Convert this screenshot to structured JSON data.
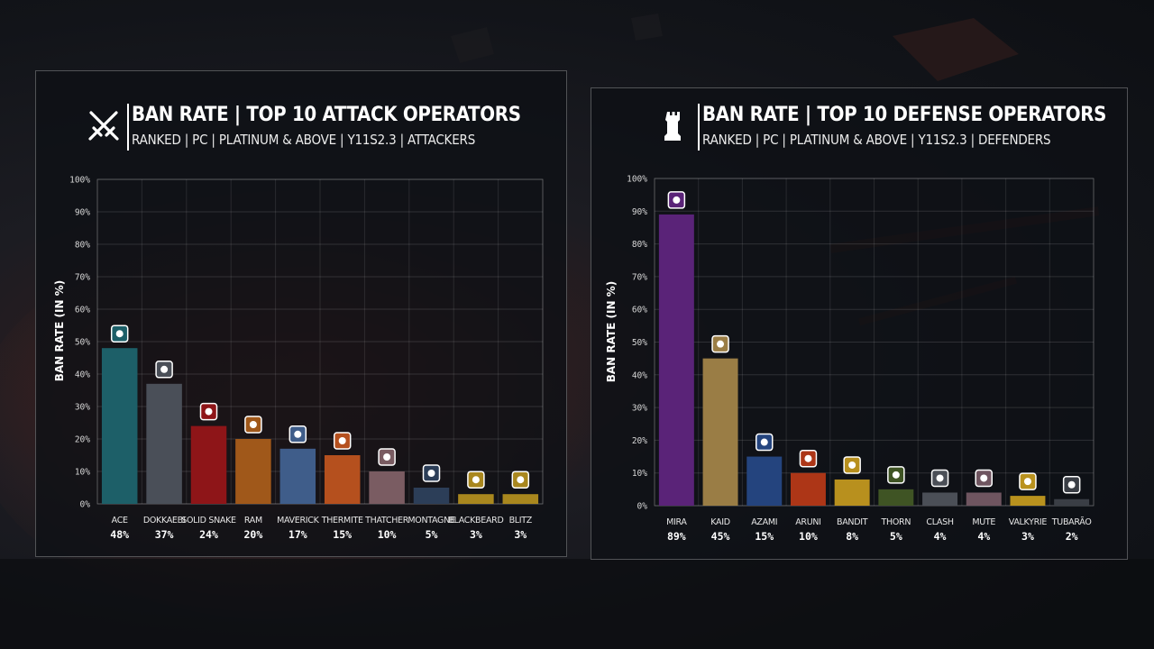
{
  "attack": {
    "title": "BAN RATE | TOP 10 ATTACK OPERATORS",
    "subtitle": "RANKED | PC | PLATINUM & ABOVE | Y11S2.3 | ATTACKERS",
    "icon": "crossed-swords-icon"
  },
  "defense": {
    "title": "BAN RATE | TOP 10 DEFENSE OPERATORS",
    "subtitle": "RANKED | PC | PLATINUM & ABOVE | Y11S2.3 | DEFENDERS",
    "icon": "tower-icon"
  },
  "chart_data": [
    {
      "type": "bar",
      "title": "BAN RATE | TOP 10 ATTACK OPERATORS",
      "subtitle": "RANKED | PC | PLATINUM & ABOVE | Y11S2.3 | ATTACKERS",
      "ylabel": "BAN RATE (IN %)",
      "xlabel": "",
      "ylim": [
        0,
        100
      ],
      "yticks": [
        "0%",
        "10%",
        "20%",
        "30%",
        "40%",
        "50%",
        "60%",
        "70%",
        "80%",
        "90%",
        "100%"
      ],
      "grid": true,
      "categories": [
        "ACE",
        "DOKKAEBI",
        "SOLID SNAKE",
        "RAM",
        "MAVERICK",
        "THERMITE",
        "THATCHER",
        "MONTAGNE",
        "BLACKBEARD",
        "BLITZ"
      ],
      "values": [
        48,
        37,
        24,
        20,
        17,
        15,
        10,
        5,
        3,
        3
      ],
      "labels": [
        "48%",
        "37%",
        "24%",
        "20%",
        "17%",
        "15%",
        "10%",
        "5%",
        "3%",
        "3%"
      ],
      "colors": [
        "#1d5f68",
        "#4a4f58",
        "#8e1518",
        "#a0581a",
        "#3f5d8a",
        "#b5501e",
        "#7a5c62",
        "#2c3e58",
        "#a9871e",
        "#a9871e"
      ]
    },
    {
      "type": "bar",
      "title": "BAN RATE | TOP 10 DEFENSE OPERATORS",
      "subtitle": "RANKED | PC | PLATINUM & ABOVE | Y11S2.3 | DEFENDERS",
      "ylabel": "BAN RATE (IN %)",
      "xlabel": "",
      "ylim": [
        0,
        100
      ],
      "yticks": [
        "0%",
        "10%",
        "20%",
        "30%",
        "40%",
        "50%",
        "60%",
        "70%",
        "80%",
        "90%",
        "100%"
      ],
      "grid": true,
      "categories": [
        "MIRA",
        "KAID",
        "AZAMI",
        "ARUNI",
        "BANDIT",
        "THORN",
        "CLASH",
        "MUTE",
        "VALKYRIE",
        "TUBARÃO"
      ],
      "values": [
        89,
        45,
        15,
        10,
        8,
        5,
        4,
        4,
        3,
        2
      ],
      "labels": [
        "89%",
        "45%",
        "15%",
        "10%",
        "8%",
        "5%",
        "4%",
        "4%",
        "3%",
        "2%"
      ],
      "colors": [
        "#5a2378",
        "#9a7d45",
        "#24447e",
        "#ad3617",
        "#b8901e",
        "#3f5424",
        "#4b4f57",
        "#6f5560",
        "#b9921e",
        "#3a3e45"
      ]
    }
  ]
}
